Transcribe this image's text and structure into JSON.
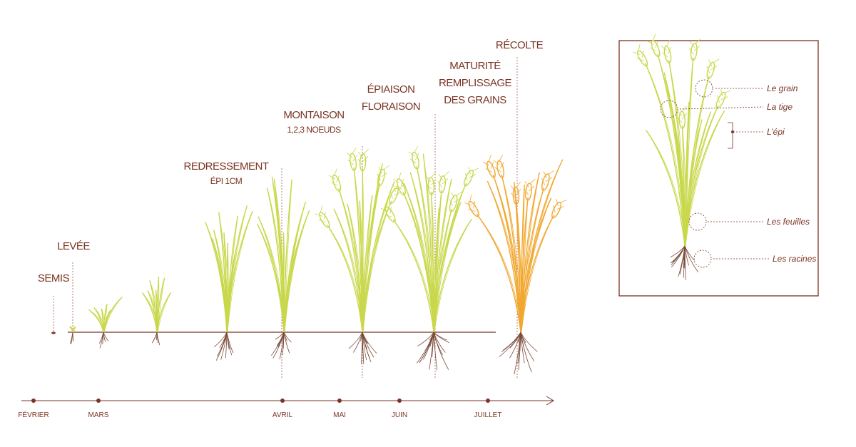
{
  "stages": [
    {
      "lines": [
        "SEMIS"
      ]
    },
    {
      "lines": [
        "LEVÉE"
      ]
    },
    {
      "lines": [
        "REDRESSEMENT",
        "ÉPI 1CM"
      ]
    },
    {
      "lines": [
        "MONTAISON",
        "1,2,3 NOEUDS"
      ]
    },
    {
      "lines": [
        "ÉPIAISON",
        "FLORAISON"
      ]
    },
    {
      "lines": [
        "MATURITÉ",
        "REMPLISSAGE",
        "DES GRAINS"
      ]
    },
    {
      "lines": [
        "RÉCOLTE"
      ]
    }
  ],
  "months": [
    "FÉVRIER",
    "MARS",
    "AVRIL",
    "MAI",
    "JUIN",
    "JUILLET"
  ],
  "legend": [
    "Le grain",
    "La tige",
    "L’épi",
    "Les feuilles",
    "Les racines"
  ]
}
